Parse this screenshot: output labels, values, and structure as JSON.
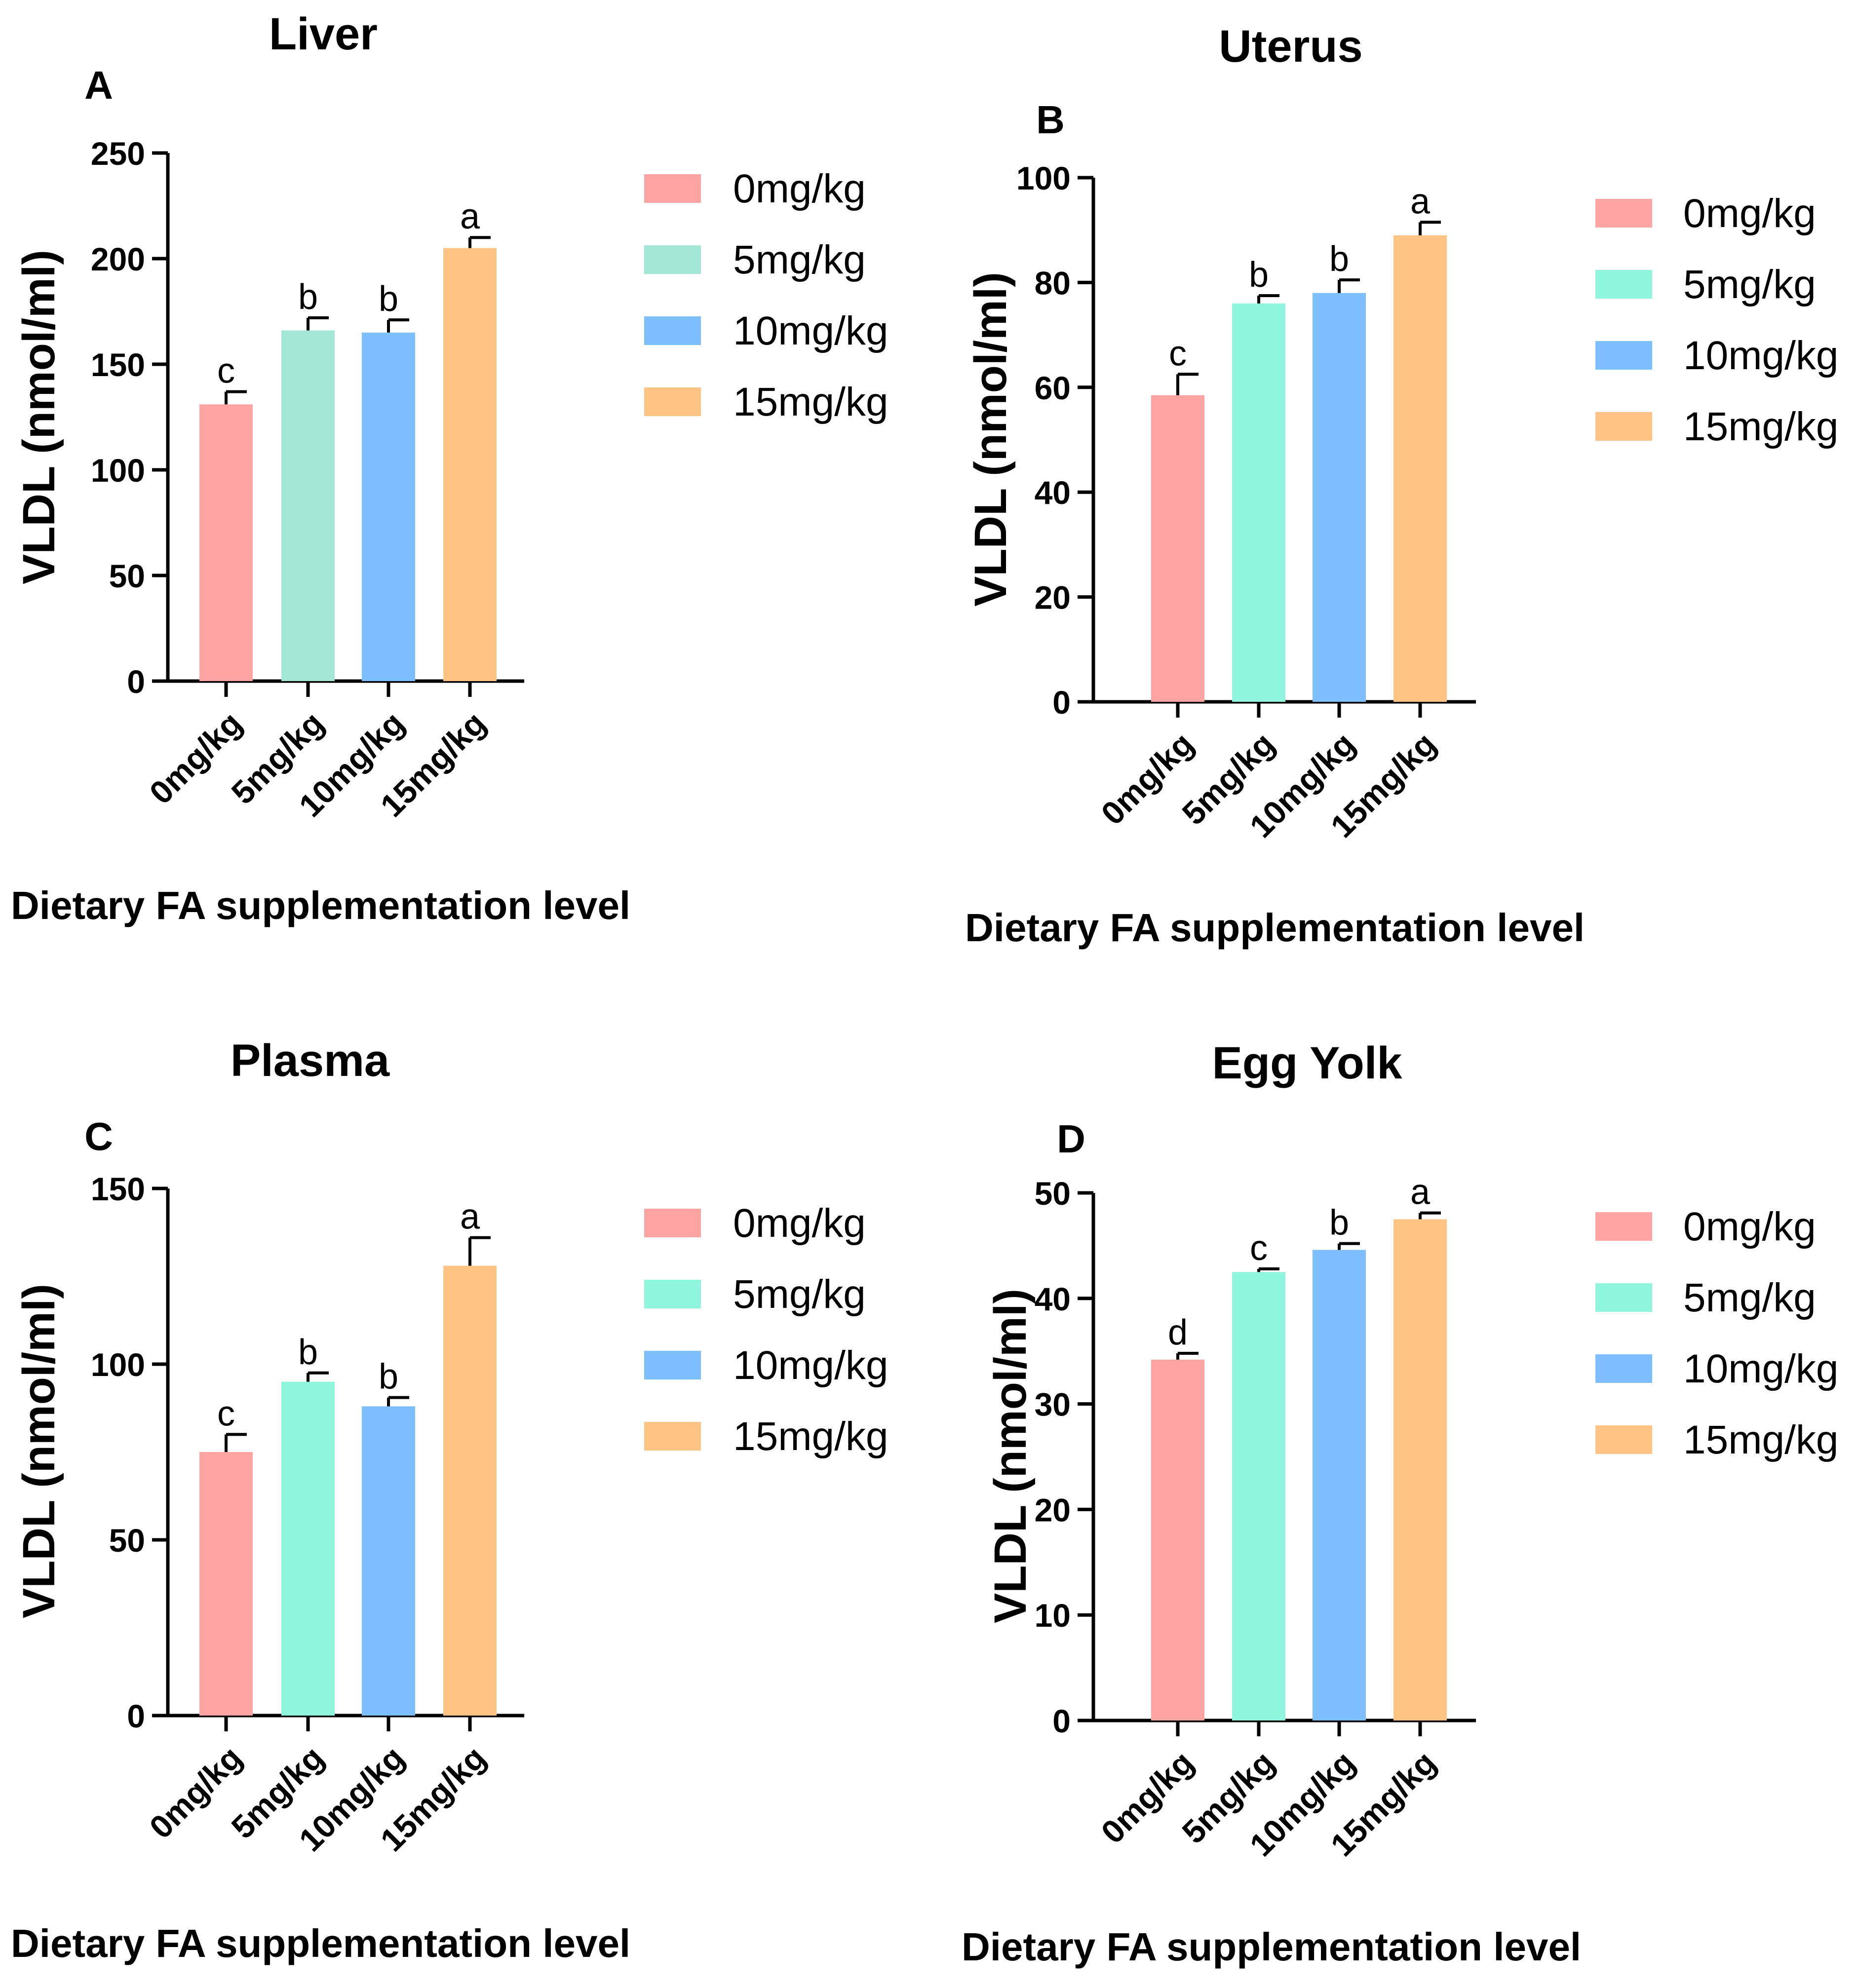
{
  "chart_data": [
    {
      "type": "bar",
      "panel": "A",
      "title": "Liver",
      "ylabel": "VLDL (nmol/ml)",
      "xlabel": "Dietary FA supplementation level",
      "categories": [
        "0mg/kg",
        "5mg/kg",
        "10mg/kg",
        "15mg/kg"
      ],
      "values": [
        131,
        166,
        165,
        205
      ],
      "errors": [
        6,
        6,
        6,
        5
      ],
      "significance": [
        "c",
        "b",
        "b",
        "a"
      ],
      "colors": [
        "#FFA3A3",
        "#A3E8D6",
        "#7DBEFF",
        "#FFC384"
      ],
      "error_colors": [
        "#000000",
        "#000000",
        "#000000",
        "#000000"
      ],
      "ylim": [
        0,
        250
      ],
      "yticks": [
        0,
        50,
        100,
        150,
        200,
        250
      ],
      "legend": [
        "0mg/kg",
        "5mg/kg",
        "10mg/kg",
        "15mg/kg"
      ]
    },
    {
      "type": "bar",
      "panel": "B",
      "title": "Uterus",
      "ylabel": "VLDL (nmol/ml)",
      "xlabel": "Dietary FA supplementation level",
      "categories": [
        "0mg/kg",
        "5mg/kg",
        "10mg/kg",
        "15mg/kg"
      ],
      "values": [
        58.5,
        76,
        78,
        89
      ],
      "errors": [
        4,
        1.5,
        2.5,
        2.5
      ],
      "significance": [
        "c",
        "b",
        "b",
        "a"
      ],
      "colors": [
        "#FFA3A3",
        "#8FF5DC",
        "#7DBEFF",
        "#FFC384"
      ],
      "error_colors": [
        "#000000",
        "#000000",
        "#000000",
        "#000000"
      ],
      "ylim": [
        0,
        100
      ],
      "yticks": [
        0,
        20,
        40,
        60,
        80,
        100
      ],
      "legend": [
        "0mg/kg",
        "5mg/kg",
        "10mg/kg",
        "15mg/kg"
      ]
    },
    {
      "type": "bar",
      "panel": "C",
      "title": "Plasma",
      "ylabel": "VLDL (nmol/ml)",
      "xlabel": "Dietary FA supplementation level",
      "categories": [
        "0mg/kg",
        "5mg/kg",
        "10mg/kg",
        "15mg/kg"
      ],
      "values": [
        75,
        95,
        88,
        128
      ],
      "errors": [
        5,
        2.5,
        2.5,
        8
      ],
      "significance": [
        "c",
        "b",
        "b",
        "a"
      ],
      "colors": [
        "#FFA3A3",
        "#8FF5DC",
        "#7DBEFF",
        "#FFC384"
      ],
      "error_colors": [
        "#000000",
        "#000000",
        "#000000",
        "#B39A6E"
      ],
      "ylim": [
        0,
        150
      ],
      "yticks": [
        0,
        50,
        100,
        150
      ],
      "legend": [
        "0mg/kg",
        "5mg/kg",
        "10mg/kg",
        "15mg/kg"
      ]
    },
    {
      "type": "bar",
      "panel": "D",
      "title": "Egg Yolk",
      "ylabel": "VLDL (nmol/ml)",
      "xlabel": "Dietary FA supplementation level",
      "categories": [
        "0mg/kg",
        "5mg/kg",
        "10mg/kg",
        "15mg/kg"
      ],
      "values": [
        34.2,
        42.5,
        44.6,
        47.5
      ],
      "errors": [
        0.6,
        0.3,
        0.6,
        0.6
      ],
      "significance": [
        "d",
        "c",
        "b",
        "a"
      ],
      "colors": [
        "#FFA3A3",
        "#8FF5DC",
        "#7DBEFF",
        "#FFC384"
      ],
      "error_colors": [
        "#000000",
        "#000000",
        "#000000",
        "#000000"
      ],
      "ylim": [
        0,
        50
      ],
      "yticks": [
        0,
        10,
        20,
        30,
        40,
        50
      ],
      "legend": [
        "0mg/kg",
        "5mg/kg",
        "10mg/kg",
        "15mg/kg"
      ]
    }
  ]
}
